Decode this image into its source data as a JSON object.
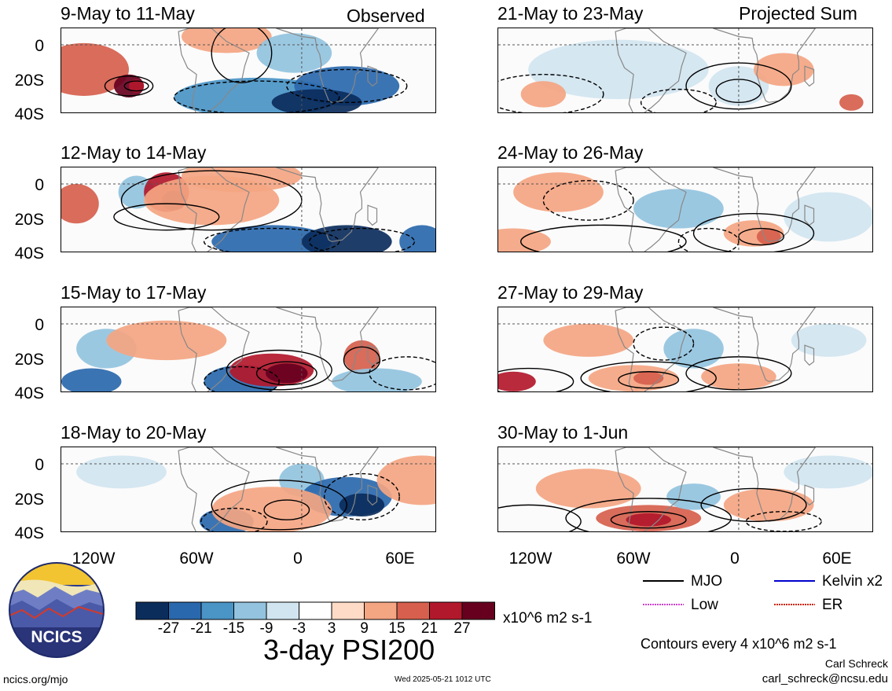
{
  "headers": {
    "observed": "Observed",
    "projected": "Projected Sum"
  },
  "panels": [
    {
      "id": "p1",
      "date": "9-May to 11-May",
      "column": "observed"
    },
    {
      "id": "p2",
      "date": "12-May to 14-May",
      "column": "observed"
    },
    {
      "id": "p3",
      "date": "15-May to 17-May",
      "column": "observed"
    },
    {
      "id": "p4",
      "date": "18-May to 20-May",
      "column": "observed"
    },
    {
      "id": "p5",
      "date": "21-May to 23-May",
      "column": "projected"
    },
    {
      "id": "p6",
      "date": "24-May to 26-May",
      "column": "projected"
    },
    {
      "id": "p7",
      "date": "27-May to 29-May",
      "column": "projected"
    },
    {
      "id": "p8",
      "date": "30-May to 1-Jun",
      "column": "projected"
    }
  ],
  "y_ticks": [
    "0",
    "20S",
    "40S"
  ],
  "x_ticks": [
    "120W",
    "60W",
    "0",
    "60E"
  ],
  "colorbar": {
    "colors": [
      "#0b2d5c",
      "#2a68ad",
      "#4a94c6",
      "#93c3de",
      "#d1e5f0",
      "#ffffff",
      "#fddbc7",
      "#f4a582",
      "#d6604d",
      "#b2182b",
      "#67001f"
    ],
    "labels": [
      "-27",
      "-21",
      "-15",
      "-9",
      "-3",
      "3",
      "9",
      "15",
      "21",
      "27"
    ],
    "units": "x10^6 m2 s-1"
  },
  "title": "3-day PSI200",
  "legend": [
    {
      "label": "MJO",
      "color": "#000000"
    },
    {
      "label": "Kelvin x2",
      "color": "#0000cc"
    },
    {
      "label": "Low",
      "color": "#cc44cc"
    },
    {
      "label": "ER",
      "color": "#cc2200"
    }
  ],
  "contour_note": "Contours every 4 x10^6 m2 s-1",
  "author": "Carl Schreck",
  "email": "carl_schreck@ncsu.edu",
  "site": "ncics.org/mjo",
  "timestamp": "Wed 2025-05-21 1012 UTC",
  "logo_text": "NCICS"
}
